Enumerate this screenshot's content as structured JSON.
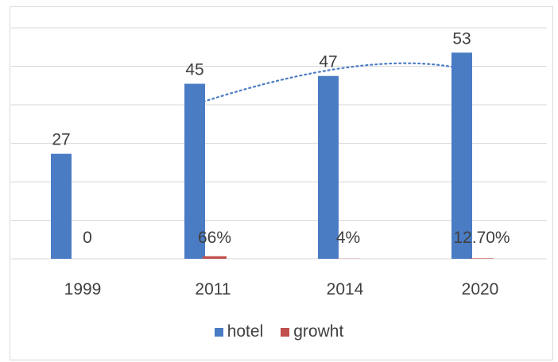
{
  "chart_data": {
    "type": "bar",
    "categories": [
      "1999",
      "2011",
      "2014",
      "2020"
    ],
    "series": [
      {
        "name": "hotel",
        "values": [
          27,
          45,
          47,
          53
        ],
        "color": "#4a7cc4",
        "labels": [
          "27",
          "45",
          "47",
          "53"
        ]
      },
      {
        "name": "growht",
        "values": [
          0,
          0.66,
          0.04,
          0.127
        ],
        "color": "#c0504d",
        "labels": [
          "0",
          "66%",
          "4%",
          "12.70%"
        ]
      }
    ],
    "trendline": {
      "series": "hotel",
      "from_category": "2011",
      "to_category": "2020",
      "values": [
        40,
        49
      ],
      "color": "#4a7cc4",
      "style": "dotted"
    },
    "grid": true,
    "legend_position": "bottom"
  }
}
